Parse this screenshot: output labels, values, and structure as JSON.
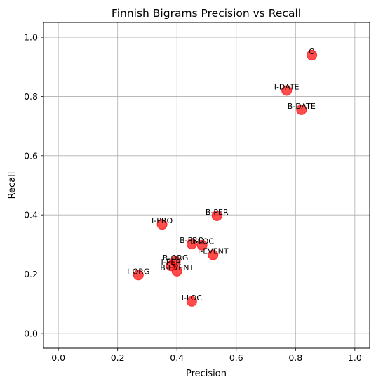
{
  "chart_data": {
    "type": "scatter",
    "title": "Finnish Bigrams Precision vs Recall",
    "xlabel": "Precision",
    "ylabel": "Recall",
    "xlim": [
      -0.05,
      1.05
    ],
    "ylim": [
      -0.05,
      1.05
    ],
    "xticks": [
      "0.0",
      "0.2",
      "0.4",
      "0.6",
      "0.8",
      "1.0"
    ],
    "yticks": [
      "0.0",
      "0.2",
      "0.4",
      "0.6",
      "0.8",
      "1.0"
    ],
    "grid": true,
    "marker_color": "#ff0000",
    "points": [
      {
        "label": "O",
        "x": 0.855,
        "y": 0.94
      },
      {
        "label": "I-DATE",
        "x": 0.77,
        "y": 0.82
      },
      {
        "label": "B-DATE",
        "x": 0.82,
        "y": 0.755
      },
      {
        "label": "B-PER",
        "x": 0.535,
        "y": 0.397
      },
      {
        "label": "I-PRO",
        "x": 0.35,
        "y": 0.368
      },
      {
        "label": "B-PRO",
        "x": 0.45,
        "y": 0.302
      },
      {
        "label": "B-LOC",
        "x": 0.485,
        "y": 0.298
      },
      {
        "label": "I-EVENT",
        "x": 0.522,
        "y": 0.265
      },
      {
        "label": "B-ORG",
        "x": 0.395,
        "y": 0.243
      },
      {
        "label": "I-PER",
        "x": 0.38,
        "y": 0.228
      },
      {
        "label": "B-EVENT",
        "x": 0.4,
        "y": 0.21
      },
      {
        "label": "I-ORG",
        "x": 0.27,
        "y": 0.197
      },
      {
        "label": "I-LOC",
        "x": 0.45,
        "y": 0.108
      }
    ]
  }
}
